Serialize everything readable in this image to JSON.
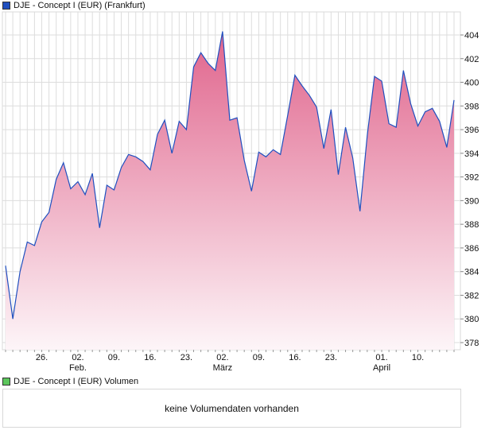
{
  "legend_price": "DJE - Concept I (EUR) (Frankfurt)",
  "legend_volume": "DJE - Concept I (EUR) Volumen",
  "no_volume": "keine Volumendaten vorhanden",
  "colors": {
    "line": "#1f4fbf",
    "fill_top": "#e0648c",
    "fill_bottom": "#fdf5f8",
    "price_swatch": "#1f4fbf",
    "volume_swatch": "#5cc65c",
    "grid": "#dddddd"
  },
  "chart_data": {
    "type": "area",
    "title": "DJE - Concept I (EUR) (Frankfurt)",
    "xlabel": "",
    "ylabel": "",
    "ylim": [
      377,
      405.5
    ],
    "yticks": [
      378,
      380,
      382,
      384,
      386,
      388,
      390,
      392,
      394,
      396,
      398,
      400,
      402,
      404
    ],
    "xticks": [
      {
        "i": 5,
        "label": "26."
      },
      {
        "i": 10,
        "label": "02.",
        "sub": "Feb."
      },
      {
        "i": 15,
        "label": "09."
      },
      {
        "i": 20,
        "label": "16."
      },
      {
        "i": 25,
        "label": "23."
      },
      {
        "i": 30,
        "label": "02.",
        "sub": "März"
      },
      {
        "i": 35,
        "label": "09."
      },
      {
        "i": 40,
        "label": "16."
      },
      {
        "i": 45,
        "label": "23."
      },
      {
        "i": 52,
        "label": "01.",
        "sub": "April"
      },
      {
        "i": 57,
        "label": "10."
      }
    ],
    "values": [
      384.5,
      380,
      384,
      386.5,
      386.2,
      388.2,
      389,
      391.8,
      393.2,
      391,
      391.6,
      390.5,
      392.3,
      387.7,
      391.3,
      390.9,
      392.8,
      393.9,
      393.7,
      393.3,
      392.6,
      395.6,
      396.8,
      394,
      396.7,
      396,
      401.3,
      402.5,
      401.6,
      401,
      404.3,
      396.8,
      397,
      393.4,
      390.8,
      394.1,
      393.7,
      394.3,
      393.9,
      397.2,
      400.6,
      399.7,
      398.9,
      397.9,
      394.4,
      397.7,
      392.2,
      396.2,
      393.6,
      389.1,
      395.5,
      400.5,
      400.1,
      396.5,
      396.2,
      401,
      398.2,
      396.3,
      397.5,
      397.8,
      396.7,
      394.5,
      398.5
    ]
  }
}
